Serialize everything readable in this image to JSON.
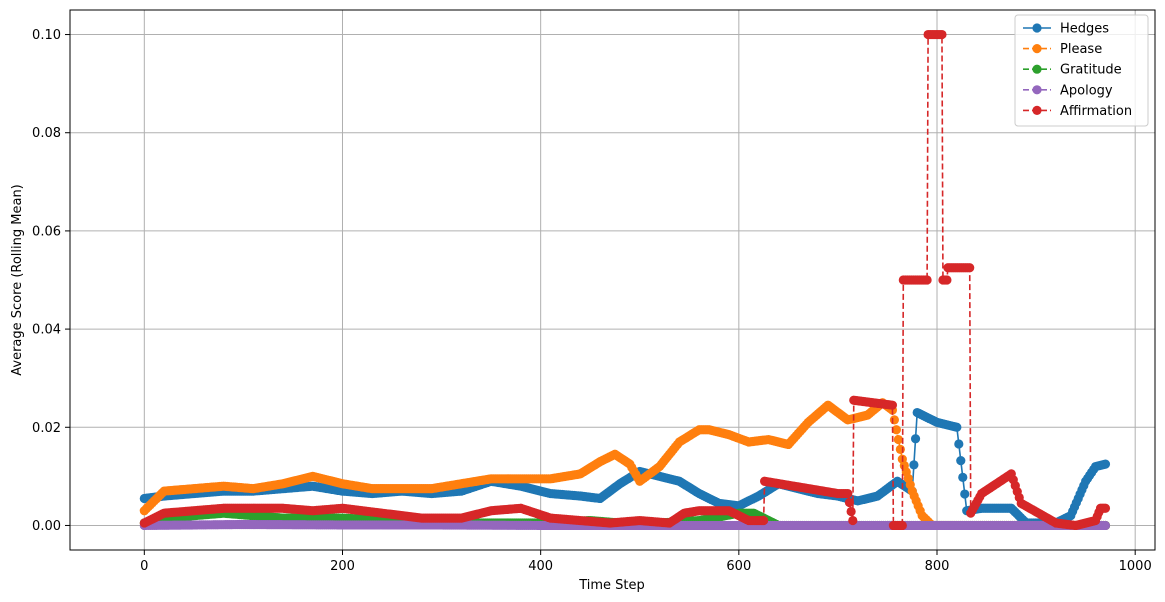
{
  "chart_data": {
    "type": "line",
    "xlabel": "Time Step",
    "ylabel": "Average Score (Rolling Mean)",
    "xlim": [
      -75,
      1020
    ],
    "ylim": [
      -0.005,
      0.105
    ],
    "xticks": [
      0,
      200,
      400,
      600,
      800,
      1000
    ],
    "xtick_labels": [
      "0",
      "200",
      "400",
      "600",
      "800",
      "1000"
    ],
    "yticks": [
      0.0,
      0.02,
      0.04,
      0.06,
      0.08,
      0.1
    ],
    "ytick_labels": [
      "0.00",
      "0.02",
      "0.04",
      "0.06",
      "0.08",
      "0.10"
    ],
    "grid": true,
    "legend_position": "top-right",
    "series": [
      {
        "name": "Hedges",
        "color": "#1f77b4",
        "linestyle": "solid",
        "marker": "circle",
        "x": [
          0,
          20,
          50,
          80,
          110,
          140,
          170,
          200,
          230,
          260,
          290,
          320,
          350,
          380,
          410,
          440,
          460,
          480,
          500,
          520,
          540,
          560,
          580,
          600,
          620,
          640,
          660,
          680,
          700,
          720,
          740,
          760,
          775,
          780,
          790,
          800,
          810,
          820,
          830,
          845,
          860,
          875,
          890,
          905,
          920,
          935,
          950,
          960,
          970
        ],
        "y": [
          0.0055,
          0.006,
          0.0065,
          0.007,
          0.007,
          0.0075,
          0.008,
          0.007,
          0.0065,
          0.007,
          0.0065,
          0.007,
          0.009,
          0.008,
          0.0065,
          0.006,
          0.0055,
          0.0085,
          0.011,
          0.01,
          0.009,
          0.0065,
          0.0045,
          0.004,
          0.006,
          0.0085,
          0.0075,
          0.0065,
          0.006,
          0.005,
          0.006,
          0.009,
          0.007,
          0.023,
          0.022,
          0.021,
          0.0205,
          0.02,
          0.003,
          0.0035,
          0.0035,
          0.0035,
          0.0005,
          0.0005,
          0.0005,
          0.002,
          0.009,
          0.012,
          0.0125
        ]
      },
      {
        "name": "Please",
        "color": "#ff7f0e",
        "linestyle": "dashed",
        "marker": "circle",
        "x": [
          0,
          20,
          50,
          80,
          110,
          140,
          170,
          200,
          230,
          260,
          290,
          320,
          350,
          380,
          410,
          440,
          460,
          475,
          490,
          500,
          520,
          540,
          560,
          570,
          590,
          610,
          630,
          650,
          670,
          690,
          710,
          730,
          745,
          755,
          765,
          775,
          785,
          795,
          820,
          860,
          900,
          940,
          970
        ],
        "y": [
          0.003,
          0.007,
          0.0075,
          0.008,
          0.0075,
          0.0085,
          0.01,
          0.0085,
          0.0075,
          0.0075,
          0.0075,
          0.0085,
          0.0095,
          0.0095,
          0.0095,
          0.0105,
          0.013,
          0.0145,
          0.0125,
          0.009,
          0.012,
          0.017,
          0.0195,
          0.0195,
          0.0185,
          0.017,
          0.0175,
          0.0165,
          0.021,
          0.0245,
          0.0215,
          0.0225,
          0.025,
          0.0235,
          0.0135,
          0.007,
          0.002,
          0.0,
          0.0,
          0.0,
          0.0,
          0.0,
          0.0
        ]
      },
      {
        "name": "Gratitude",
        "color": "#2ca02c",
        "linestyle": "dashed",
        "marker": "circle",
        "x": [
          0,
          20,
          50,
          80,
          110,
          140,
          170,
          200,
          250,
          300,
          350,
          400,
          450,
          480,
          520,
          560,
          600,
          615,
          640,
          700,
          800,
          900,
          970
        ],
        "y": [
          0.0005,
          0.0015,
          0.002,
          0.0025,
          0.002,
          0.0015,
          0.0015,
          0.0015,
          0.001,
          0.0005,
          0.0005,
          0.0005,
          0.001,
          0.0005,
          0.0005,
          0.001,
          0.0025,
          0.0025,
          0.0,
          0.0,
          0.0,
          0.0,
          0.0
        ]
      },
      {
        "name": "Apology",
        "color": "#9467bd",
        "linestyle": "dashed",
        "marker": "circle",
        "x": [
          0,
          100,
          200,
          300,
          400,
          500,
          600,
          700,
          800,
          900,
          970
        ],
        "y": [
          0.0,
          0.0002,
          0.0001,
          0.0001,
          0.0,
          0.0,
          0.0,
          0.0,
          0.0,
          0.0,
          0.0
        ]
      },
      {
        "name": "Affirmation",
        "color": "#d62728",
        "linestyle": "dashed",
        "marker": "circle",
        "x": [
          0,
          20,
          50,
          80,
          110,
          140,
          170,
          200,
          240,
          280,
          320,
          350,
          380,
          410,
          440,
          470,
          500,
          530,
          545,
          560,
          590,
          610,
          625,
          626,
          700,
          710,
          715,
          716,
          755,
          756,
          765,
          766,
          790,
          791,
          805,
          806,
          810,
          811,
          833,
          834,
          845,
          875,
          885,
          920,
          940,
          960,
          965,
          970
        ],
        "y": [
          0.0005,
          0.0025,
          0.003,
          0.0035,
          0.0035,
          0.0035,
          0.003,
          0.0035,
          0.0025,
          0.0015,
          0.0015,
          0.003,
          0.0035,
          0.0015,
          0.001,
          0.0005,
          0.001,
          0.0005,
          0.0025,
          0.003,
          0.003,
          0.001,
          0.001,
          0.009,
          0.0065,
          0.0065,
          0.001,
          0.0255,
          0.0245,
          0.0,
          0.0,
          0.05,
          0.05,
          0.1,
          0.1,
          0.05,
          0.05,
          0.0525,
          0.0525,
          0.0025,
          0.0065,
          0.0105,
          0.0045,
          0.0005,
          0.0,
          0.001,
          0.0035,
          0.0035
        ]
      }
    ]
  }
}
